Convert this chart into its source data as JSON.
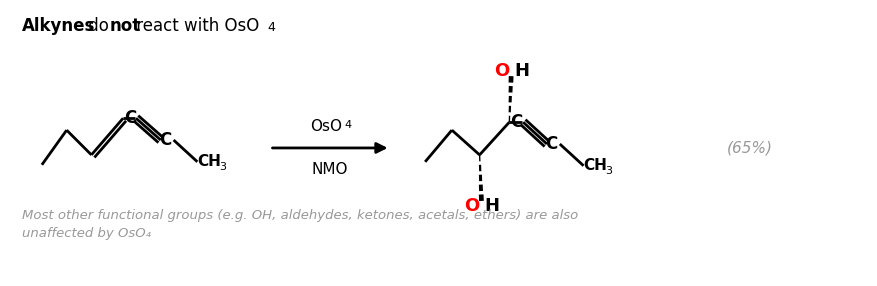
{
  "background_color": "#ffffff",
  "oh_color": "#ff0000",
  "bond_color": "#000000",
  "gray_color": "#999999",
  "title_bold1": "Alkynes",
  "title_normal1": " do ",
  "title_bold2": "not",
  "title_normal2": " react with OsO",
  "title_sub": "4",
  "arrow_top": "OsO",
  "arrow_top_sub": "4",
  "arrow_bottom": "NMO",
  "yield_text": "(65%)",
  "footnote_line1": "Most other functional groups (e.g. OH, aldehydes, ketones, acetals, ethers) are also",
  "footnote_line2": "unaffected by OsO₄"
}
